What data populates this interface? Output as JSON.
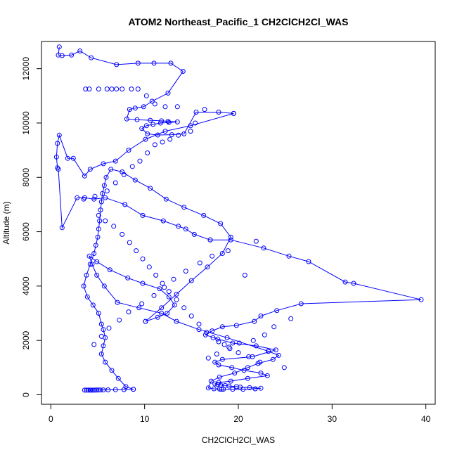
{
  "chart_data": {
    "type": "line",
    "title": "ATOM2 Northeast_Pacific_1 CH2ClCH2Cl_WAS",
    "xlabel": "CH2ClCH2Cl_WAS",
    "ylabel": "Altitude (m)",
    "xlim": [
      -1,
      41
    ],
    "ylim": [
      -350,
      13000
    ],
    "xticks": [
      "0",
      "10",
      "20",
      "30",
      "40"
    ],
    "yticks": [
      "0",
      "2000",
      "4000",
      "6000",
      "8000",
      "10000",
      "12000"
    ],
    "xtick_values": [
      0,
      10,
      20,
      30,
      40
    ],
    "ytick_values": [
      0,
      2000,
      4000,
      6000,
      8000,
      10000,
      12000
    ],
    "grid": false,
    "color": "#0000ff",
    "marker": "open-circle",
    "series": [
      {
        "x": [
          0.9,
          0.8,
          1.2,
          2.2,
          3.1,
          4.3,
          7.0,
          9.3,
          11.0,
          12.8,
          14.1,
          12.5,
          10.8,
          9.9,
          9.0,
          8.4,
          8.1,
          9.2,
          10.6,
          11.8,
          12.5,
          13.5,
          12.6,
          11.7,
          10.9,
          10.2,
          9.7,
          10.3,
          11.4,
          12.9,
          14.2,
          15.5,
          17.9,
          19.5
        ],
        "y": [
          12800,
          12500,
          12480,
          12500,
          12650,
          12400,
          12150,
          12200,
          12200,
          12200,
          11900,
          11100,
          10800,
          10600,
          10550,
          10500,
          10150,
          10120,
          10100,
          10080,
          10060,
          10040,
          10020,
          10000,
          9950,
          9900,
          9800,
          9600,
          9560,
          9570,
          9600,
          10400,
          10400,
          10350
        ]
      },
      {
        "x": [
          19.5,
          14.9,
          12.2,
          10.1,
          8.3,
          6.9,
          5.6,
          4.2,
          3.6,
          2.4,
          1.8,
          0.9,
          0.7,
          0.6,
          0.7,
          0.8,
          1.2,
          2.8,
          3.6,
          4.6,
          5.8,
          7.9,
          9.8,
          12.0,
          13.6,
          14.4,
          15.3,
          17.0
        ],
        "y": [
          10350,
          9900,
          9700,
          9400,
          9000,
          8600,
          8500,
          8300,
          8050,
          8700,
          8700,
          9550,
          9250,
          8750,
          8350,
          8300,
          6150,
          7250,
          7250,
          7200,
          7250,
          7000,
          6600,
          6400,
          6200,
          6100,
          5900,
          5700
        ]
      },
      {
        "x": [
          17.0,
          19.2,
          22.7,
          25.4,
          27.5,
          31.4,
          32.3,
          39.5,
          26.7,
          24.1,
          22.4,
          21.7,
          19.8,
          18.3,
          17.2,
          16.5,
          17.8,
          19.4,
          21.9,
          24.0,
          21.5,
          18.3,
          17.5,
          17.9,
          19.3,
          20.6,
          22.4,
          23.1,
          21.0,
          19.2,
          17.9,
          17.5,
          17.8,
          18.1,
          18.6,
          19.0,
          19.8,
          20.2,
          21.2,
          22.4,
          21.8,
          20.5,
          19.4,
          18.4,
          18.2,
          18.0,
          17.4,
          16.8,
          17.1,
          18.0,
          19.6,
          21.0,
          22.1,
          23.7,
          24.3,
          23.2
        ],
        "y": [
          5700,
          5700,
          5400,
          5100,
          4900,
          4150,
          4100,
          3500,
          3350,
          3100,
          2900,
          2700,
          2550,
          2500,
          2350,
          2200,
          2050,
          1900,
          1800,
          1650,
          1400,
          1300,
          1200,
          1100,
          1000,
          900,
          800,
          700,
          600,
          500,
          450,
          400,
          380,
          360,
          340,
          320,
          300,
          280,
          260,
          240,
          220,
          200,
          200,
          200,
          200,
          210,
          220,
          250,
          500,
          650,
          800,
          1000,
          1150,
          1300,
          1450,
          1600
        ]
      },
      {
        "x": [
          23.2,
          18.8,
          15.8,
          13.4,
          11.8,
          9.4,
          7.1,
          5.7,
          4.9,
          4.4,
          4.1,
          4.9,
          6.3,
          8.2,
          9.8,
          11.6,
          12.6,
          13.2,
          12.4,
          11.4,
          10.1
        ],
        "y": [
          1600,
          2100,
          2400,
          2700,
          3000,
          3200,
          3400,
          4000,
          4400,
          4800,
          5100,
          4900,
          4600,
          4300,
          4100,
          3900,
          3600,
          3300,
          3000,
          2850,
          2700
        ]
      },
      {
        "x": [
          10.1,
          11.8,
          13.4,
          15.0,
          16.7,
          18.3,
          19.2,
          18.1,
          16.3,
          14.2,
          12.3,
          10.6,
          9.0,
          7.6,
          6.4,
          5.9,
          5.7,
          5.5,
          5.4,
          5.3,
          5.2,
          5.1,
          5.0,
          4.8,
          4.6,
          4.2,
          3.8,
          3.5,
          3.9,
          4.5,
          5.1,
          5.4,
          5.6,
          5.8,
          5.6,
          5.4,
          5.8,
          6.5,
          7.2,
          8.0,
          8.8
        ],
        "y": [
          2700,
          3200,
          3700,
          4200,
          4700,
          5200,
          5800,
          6300,
          6600,
          6900,
          7200,
          7600,
          7900,
          8200,
          8300,
          8000,
          7700,
          7400,
          7100,
          6800,
          6400,
          6100,
          5800,
          5500,
          5200,
          4800,
          4400,
          4000,
          3600,
          3300,
          3000,
          2600,
          2400,
          2100,
          1800,
          1500,
          1200,
          900,
          600,
          300,
          200
        ]
      },
      {
        "x": [
          8.8,
          7.8,
          6.9,
          6.1,
          5.6,
          5.3,
          5.1,
          4.9,
          4.7,
          4.5,
          4.3,
          4.2,
          4.0,
          3.8,
          3.6
        ],
        "y": [
          200,
          190,
          185,
          180,
          178,
          176,
          174,
          172,
          170,
          170,
          170,
          170,
          170,
          170,
          170
        ]
      }
    ],
    "extra_points": {
      "x": [
        3.7,
        4.1,
        5.1,
        6.0,
        6.5,
        7.0,
        7.6,
        8.6,
        9.3,
        10.2,
        11.1,
        12.2,
        13.5,
        16.4,
        15.4,
        14.9,
        13.6,
        12.7,
        11.9,
        11.1,
        10.3,
        9.5,
        8.7,
        7.8,
        6.9,
        6.0,
        4.7,
        3.5,
        5.1,
        5.8,
        6.7,
        7.6,
        8.4,
        9.1,
        9.8,
        10.5,
        11.2,
        11.9,
        12.6,
        13.4,
        14.2,
        15.0,
        15.8,
        16.6,
        17.3,
        17.9,
        18.5,
        19.1,
        20.0,
        21.1,
        22.3,
        24.9,
        25.6,
        23.8,
        22.8,
        21.6,
        20.1,
        19.0,
        17.7,
        16.8,
        20.7,
        21.9,
        18.9,
        17.2,
        15.9,
        14.4,
        13.1,
        12.1,
        11.0,
        9.7,
        8.3,
        7.3,
        6.2,
        5.4,
        4.6
      ],
      "y": [
        11250,
        11250,
        11250,
        11250,
        11250,
        11250,
        11250,
        11250,
        11250,
        11000,
        10700,
        10600,
        10600,
        10500,
        10000,
        9700,
        9550,
        9400,
        9300,
        9200,
        8900,
        8600,
        8400,
        8100,
        7800,
        7500,
        7300,
        7200,
        6600,
        6400,
        6200,
        5900,
        5600,
        5300,
        5000,
        4700,
        4400,
        4100,
        3800,
        3500,
        3200,
        2900,
        2600,
        2300,
        2100,
        1950,
        1850,
        1700,
        1550,
        1400,
        1200,
        1000,
        2800,
        2500,
        2200,
        2000,
        1900,
        1750,
        1500,
        1350,
        4400,
        5650,
        5300,
        5100,
        4850,
        4550,
        4250,
        3950,
        3650,
        3350,
        3050,
        2750,
        2450,
        2150,
        1850
      ]
    }
  }
}
